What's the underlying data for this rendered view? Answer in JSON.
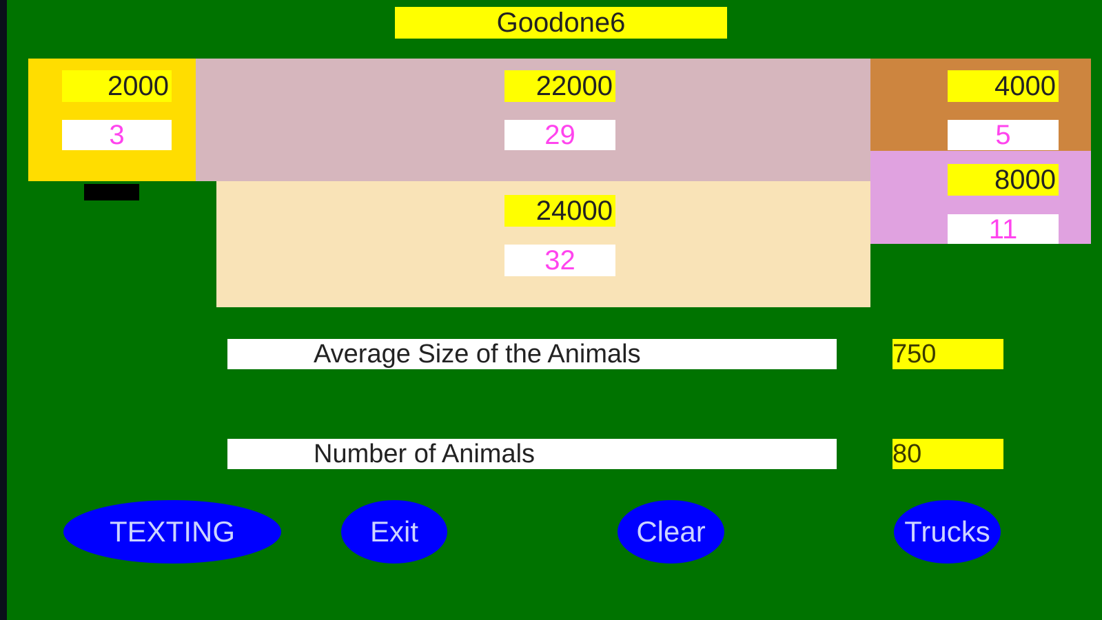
{
  "title": "Goodone6",
  "panels": {
    "yellow": {
      "top": "2000",
      "bottom": "3",
      "color": "#ffdd00"
    },
    "pink": {
      "top": "22000",
      "bottom": "29",
      "color": "#d6b6bd"
    },
    "beige": {
      "top": "24000",
      "bottom": "32",
      "color": "#f9e3b7"
    },
    "brown": {
      "top": "4000",
      "bottom": "5",
      "color": "#cd853f"
    },
    "lavender": {
      "top": "8000",
      "bottom": "11",
      "color": "#e0a2e0"
    }
  },
  "stats": [
    {
      "label": "Average Size of the Animals",
      "value": "750"
    },
    {
      "label": "Number of Animals",
      "value": "80"
    }
  ],
  "buttons": {
    "texting": "TEXTING",
    "exit": "Exit",
    "clear": "Clear",
    "trucks": "Trucks"
  }
}
